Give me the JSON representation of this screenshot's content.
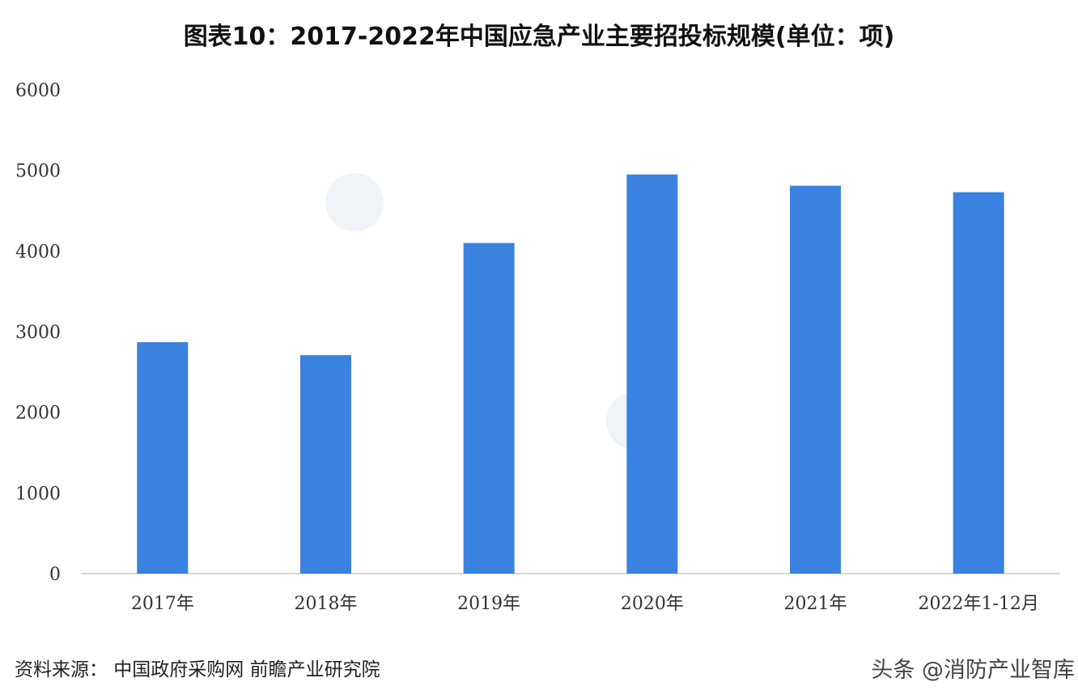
{
  "title": "图表10：2017-2022年中国应急产业主要招投标规模(单位：项)",
  "source": "资料来源：  中国政府采购网 前瞻产业研究院",
  "watermark_bottom": "头条 @消防产业智库",
  "bar_color": "#3b82e0",
  "chart_data": {
    "type": "bar",
    "title": "图表10：2017-2022年中国应急产业主要招投标规模(单位：项)",
    "categories": [
      "2017年",
      "2018年",
      "2019年",
      "2020年",
      "2021年",
      "2022年1-12月"
    ],
    "values": [
      2870,
      2710,
      4100,
      4950,
      4810,
      4730
    ],
    "ylim": [
      0,
      6000
    ],
    "yticks": [
      0,
      1000,
      2000,
      3000,
      4000,
      5000,
      6000
    ],
    "grid": false,
    "xlabel": "",
    "ylabel": ""
  }
}
